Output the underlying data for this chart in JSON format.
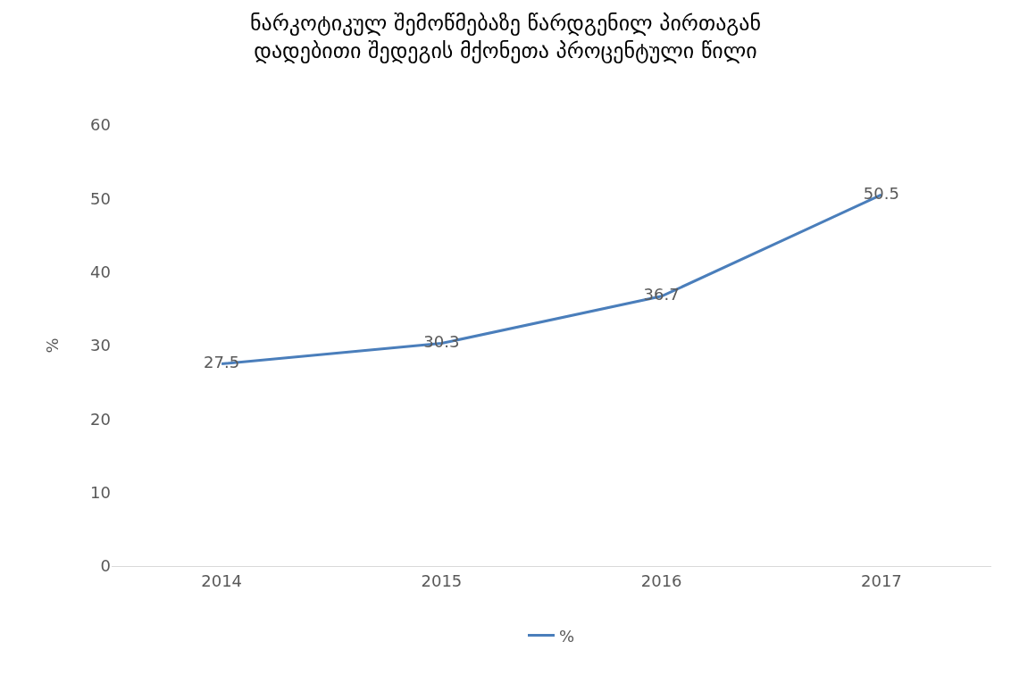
{
  "chart_data": {
    "type": "line",
    "title": "ნარკოტიკულ შემოწმებაზე წარდგენილ პირთაგან\nდადებითი შედეგის მქონეთა პროცენტული წილი",
    "ylabel": "%",
    "categories": [
      "2014",
      "2015",
      "2016",
      "2017"
    ],
    "series": [
      {
        "name": "%",
        "color": "#4a7ebb",
        "values": [
          27.5,
          30.3,
          36.7,
          50.5
        ]
      }
    ],
    "ylim": [
      0,
      60
    ],
    "yticks": [
      0,
      10,
      20,
      30,
      40,
      50,
      60
    ],
    "grid": false,
    "legend": "bottom",
    "data_labels": true,
    "marker": "none",
    "line_style": "solid"
  }
}
